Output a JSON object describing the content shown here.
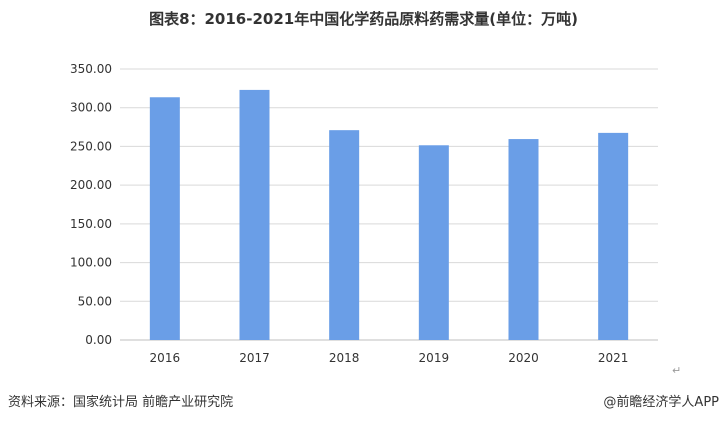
{
  "title": "图表8：2016-2021年中国化学药品原料药需求量(单位：万吨)",
  "source": "资料来源：国家统计局 前瞻产业研究院",
  "brand": "@前瞻经济学人APP",
  "return_mark": "↵",
  "colors": {
    "bar": "#6A9EE7",
    "grid": "#D9D9D9",
    "axis": "#BFBFBF",
    "text": "#333333"
  },
  "chart_data": {
    "type": "bar",
    "title": "图表8：2016-2021年中国化学药品原料药需求量(单位：万吨)",
    "xlabel": "",
    "ylabel": "",
    "categories": [
      "2016",
      "2017",
      "2018",
      "2019",
      "2020",
      "2021"
    ],
    "values": [
      313.5,
      323.0,
      271.0,
      251.5,
      259.5,
      267.5
    ],
    "ylim": [
      0,
      350
    ],
    "yticks": [
      "0.00",
      "50.00",
      "100.00",
      "150.00",
      "200.00",
      "250.00",
      "300.00",
      "350.00"
    ],
    "grid": true,
    "legend": "none"
  }
}
